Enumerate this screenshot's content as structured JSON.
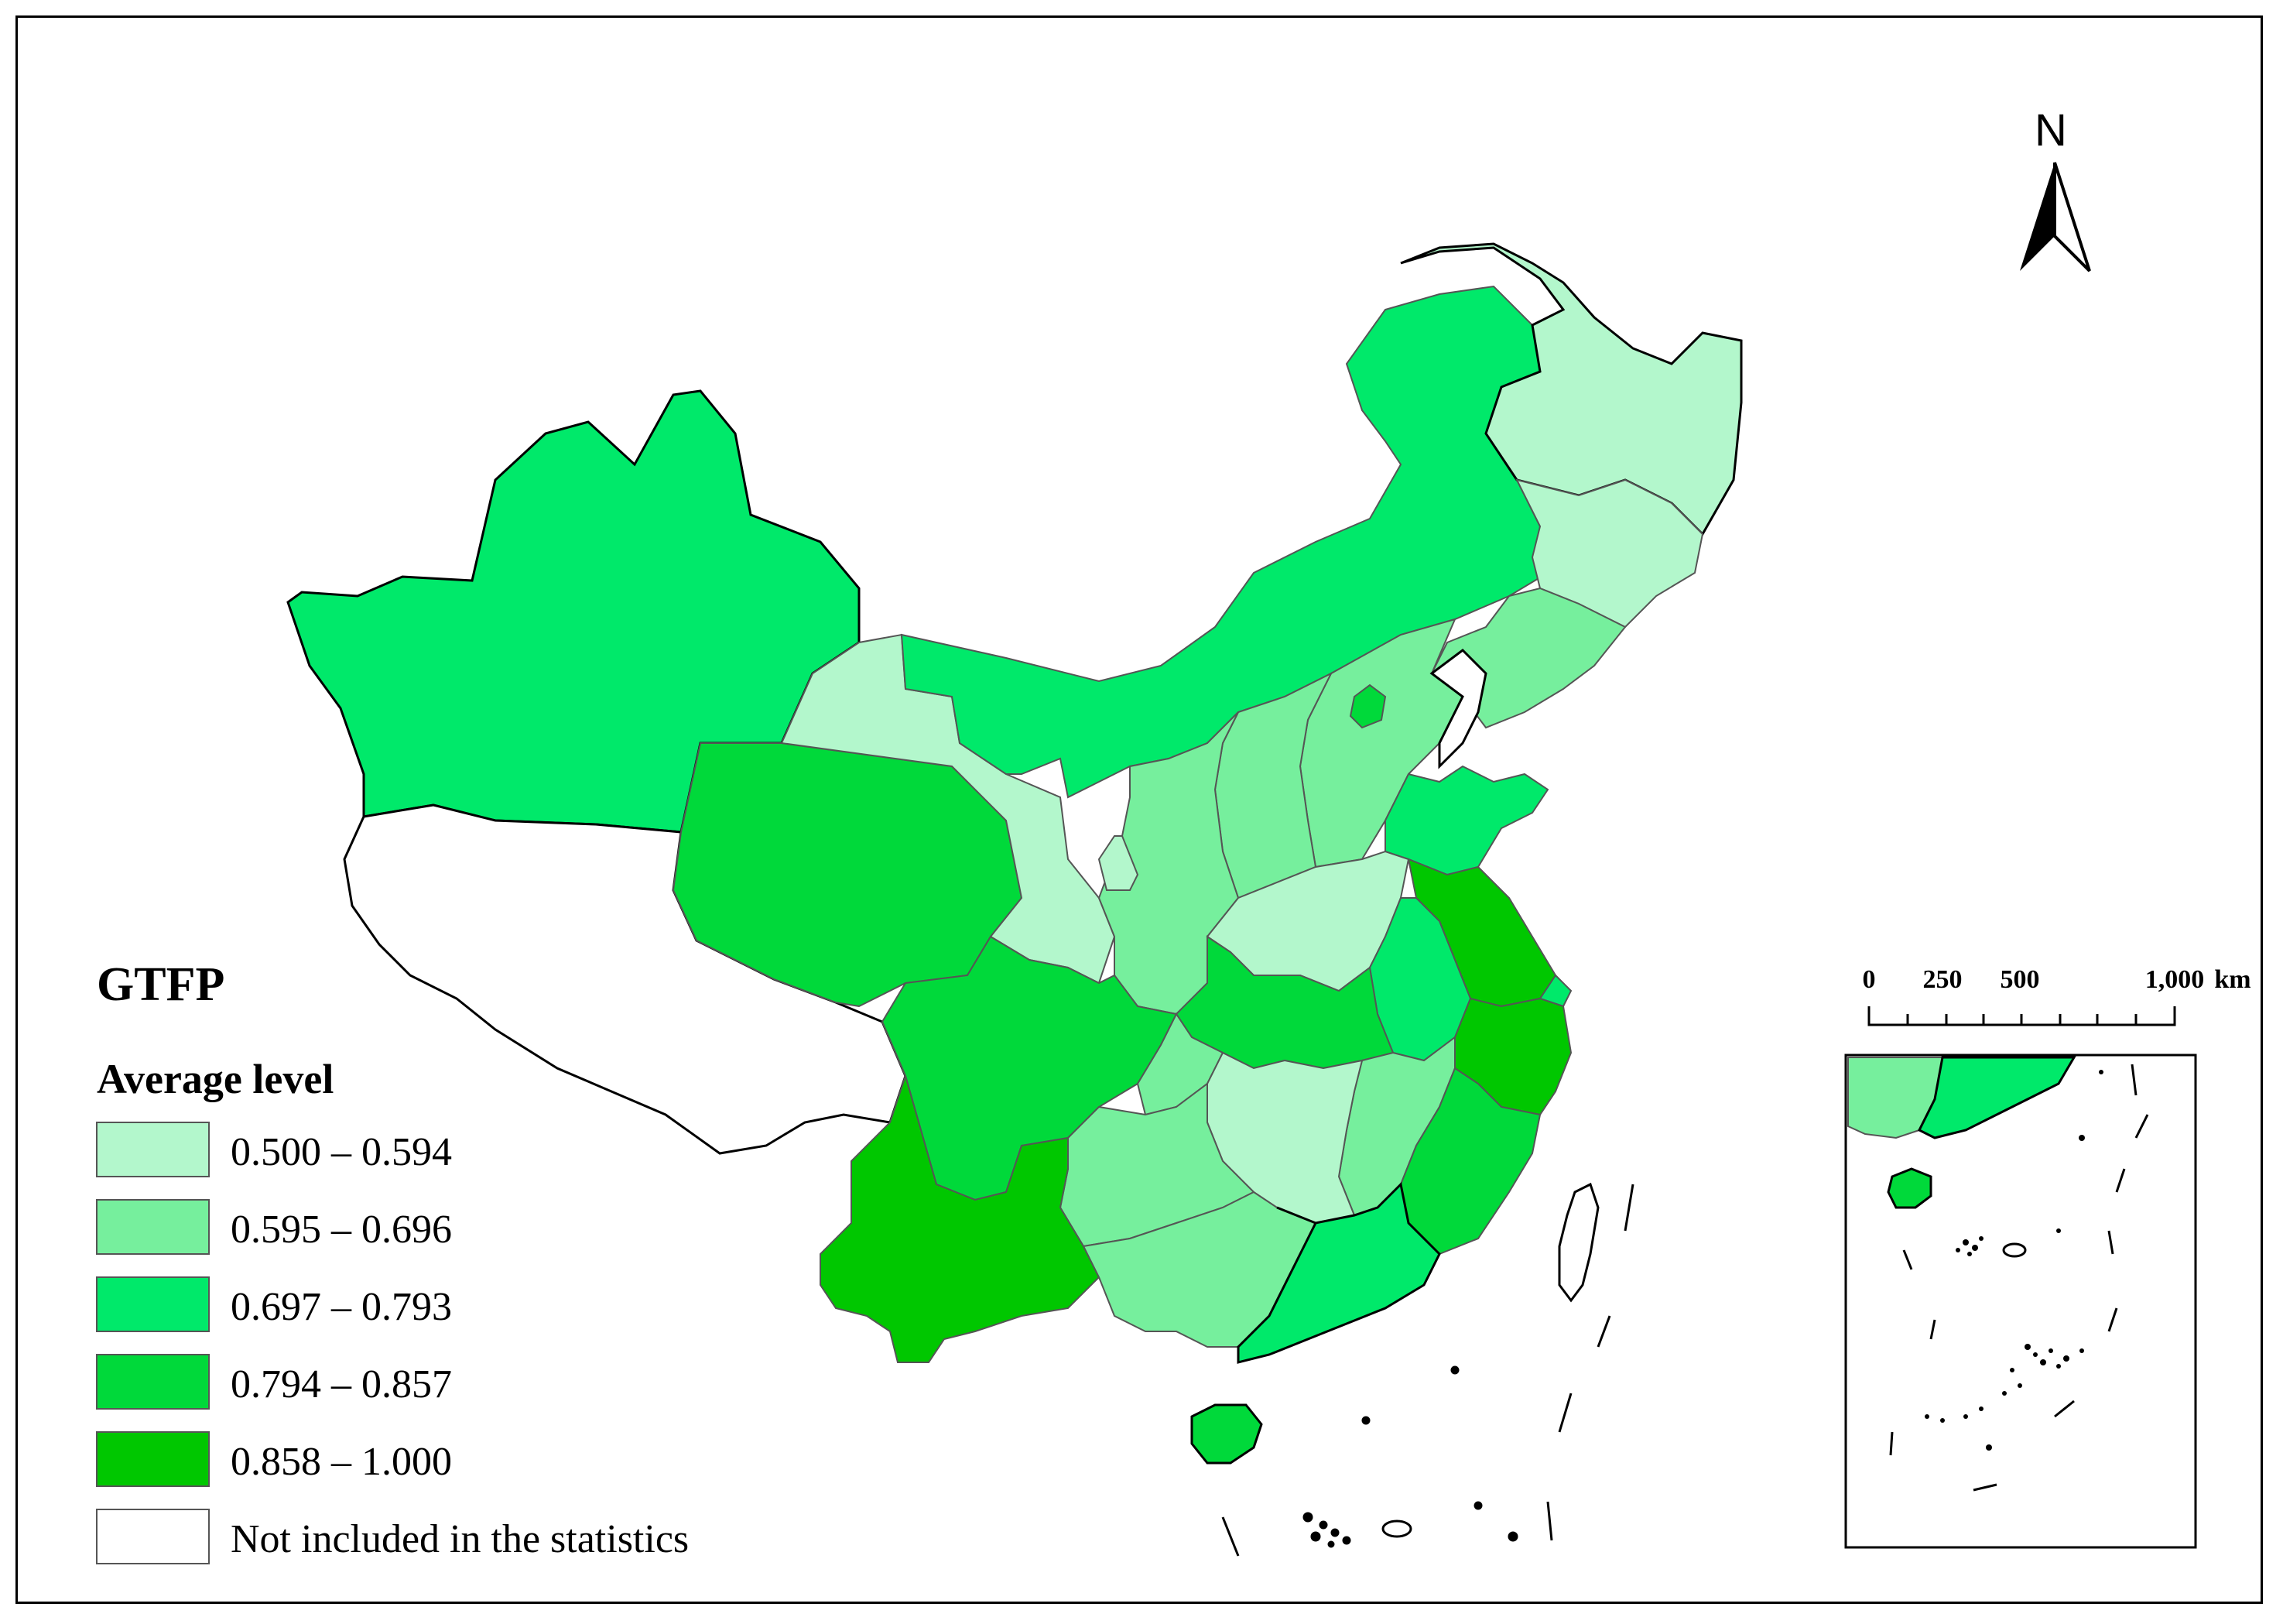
{
  "legend": {
    "title": "GTFP",
    "subtitle": "Average level",
    "classes": [
      {
        "label": "0.500 – 0.594",
        "color": "#b3f7cc"
      },
      {
        "label": "0.595 – 0.696",
        "color": "#76ef9d"
      },
      {
        "label": "0.697 – 0.793",
        "color": "#00e96a"
      },
      {
        "label": "0.794 – 0.857",
        "color": "#00d93a"
      },
      {
        "label": "0.858 – 1.000",
        "color": "#00c700"
      },
      {
        "label": "Not included in the statistics",
        "color": "#ffffff"
      }
    ]
  },
  "north_arrow": {
    "label": "N"
  },
  "scale_bar": {
    "ticks": [
      "0",
      "250",
      "500",
      "1,000"
    ],
    "unit": "km"
  },
  "colors": {
    "outline": "#000000",
    "border": "#555555"
  }
}
